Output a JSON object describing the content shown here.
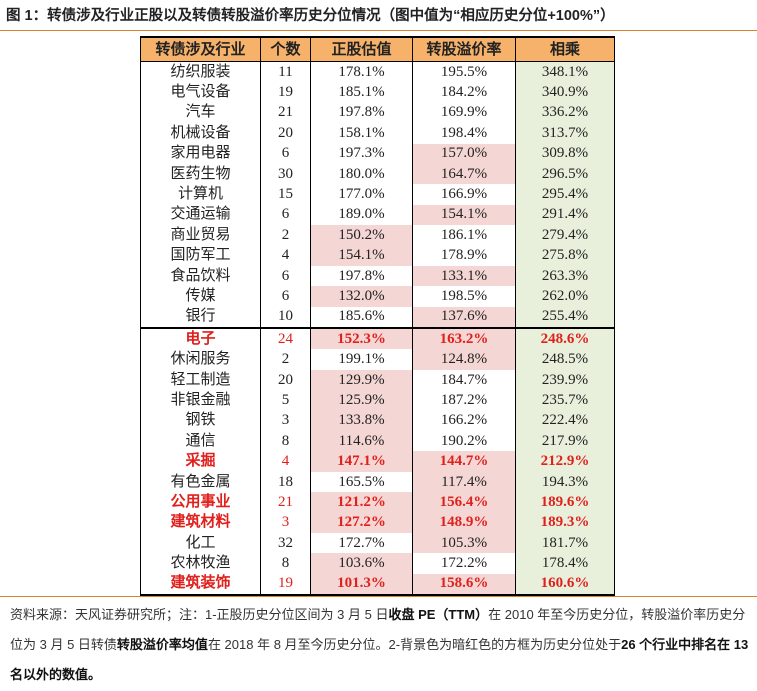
{
  "title": "图 1：转债涉及行业正股以及转债转股溢价率历史分位情况（图中值为“相应历史分位+100%”）",
  "table": {
    "header": [
      "转债涉及行业",
      "个数",
      "正股估值",
      "转股溢价率",
      "相乘"
    ],
    "rows": [
      [
        "纺织服装",
        "11",
        "178.1%",
        "195.5%",
        "348.1%"
      ],
      [
        "电气设备",
        "19",
        "185.1%",
        "184.2%",
        "340.9%"
      ],
      [
        "汽车",
        "21",
        "197.8%",
        "169.9%",
        "336.2%"
      ],
      [
        "机械设备",
        "20",
        "158.1%",
        "198.4%",
        "313.7%"
      ],
      [
        "家用电器",
        "6",
        "197.3%",
        "157.0%",
        "309.8%"
      ],
      [
        "医药生物",
        "30",
        "180.0%",
        "164.7%",
        "296.5%"
      ],
      [
        "计算机",
        "15",
        "177.0%",
        "166.9%",
        "295.4%"
      ],
      [
        "交通运输",
        "6",
        "189.0%",
        "154.1%",
        "291.4%"
      ],
      [
        "商业贸易",
        "2",
        "150.2%",
        "186.1%",
        "279.4%"
      ],
      [
        "国防军工",
        "4",
        "154.1%",
        "178.9%",
        "275.8%"
      ],
      [
        "食品饮料",
        "6",
        "197.8%",
        "133.1%",
        "263.3%"
      ],
      [
        "传媒",
        "6",
        "132.0%",
        "198.5%",
        "262.0%"
      ],
      [
        "银行",
        "10",
        "185.6%",
        "137.6%",
        "255.4%"
      ],
      [
        "电子",
        "24",
        "152.3%",
        "163.2%",
        "248.6%"
      ],
      [
        "休闲服务",
        "2",
        "199.1%",
        "124.8%",
        "248.5%"
      ],
      [
        "轻工制造",
        "20",
        "129.9%",
        "184.7%",
        "239.9%"
      ],
      [
        "非银金融",
        "5",
        "125.9%",
        "187.2%",
        "235.7%"
      ],
      [
        "钢铁",
        "3",
        "133.8%",
        "166.2%",
        "222.4%"
      ],
      [
        "通信",
        "8",
        "114.6%",
        "190.2%",
        "217.9%"
      ],
      [
        "采掘",
        "4",
        "147.1%",
        "144.7%",
        "212.9%"
      ],
      [
        "有色金属",
        "18",
        "165.5%",
        "117.4%",
        "194.3%"
      ],
      [
        "公用事业",
        "21",
        "121.2%",
        "156.4%",
        "189.6%"
      ],
      [
        "建筑材料",
        "3",
        "127.2%",
        "148.9%",
        "189.3%"
      ],
      [
        "化工",
        "32",
        "172.7%",
        "105.3%",
        "181.7%"
      ],
      [
        "农林牧渔",
        "8",
        "103.6%",
        "172.2%",
        "178.4%"
      ],
      [
        "建筑装饰",
        "19",
        "101.3%",
        "158.6%",
        "160.6%"
      ]
    ],
    "red_rows": [
      13,
      19,
      21,
      22,
      25
    ],
    "divider_before_row": 13,
    "shaded": [
      [
        0,
        0,
        0
      ],
      [
        0,
        0,
        0
      ],
      [
        0,
        0,
        0
      ],
      [
        0,
        0,
        0
      ],
      [
        0,
        1,
        0
      ],
      [
        0,
        1,
        0
      ],
      [
        0,
        0,
        0
      ],
      [
        0,
        1,
        0
      ],
      [
        1,
        0,
        0
      ],
      [
        1,
        0,
        0
      ],
      [
        0,
        1,
        0
      ],
      [
        1,
        0,
        0
      ],
      [
        0,
        1,
        0
      ],
      [
        1,
        1,
        0
      ],
      [
        0,
        1,
        0
      ],
      [
        1,
        0,
        0
      ],
      [
        1,
        0,
        0
      ],
      [
        1,
        0,
        0
      ],
      [
        1,
        0,
        0
      ],
      [
        1,
        1,
        0
      ],
      [
        0,
        1,
        0
      ],
      [
        1,
        1,
        0
      ],
      [
        1,
        1,
        0
      ],
      [
        0,
        1,
        0
      ],
      [
        1,
        0,
        0
      ],
      [
        1,
        1,
        0
      ]
    ]
  },
  "note": {
    "segments": [
      {
        "text": "资料来源：天风证券研究所；注：1-正股历史分位区间为 3 月 5 日",
        "bold": false
      },
      {
        "text": "收盘 PE（TTM）",
        "bold": true
      },
      {
        "text": "在 2010 年至今历史分位，转股溢价率历史分位为 3 月 5 日转债",
        "bold": false
      },
      {
        "text": "转股溢价率均值",
        "bold": true
      },
      {
        "text": "在 2018 年 8 月至今历史分位。2-背景色为暗红色的方框为历史分位处于",
        "bold": false
      },
      {
        "text": "26 个行业中排名在 13 名以外的数值。",
        "bold": true
      }
    ]
  }
}
